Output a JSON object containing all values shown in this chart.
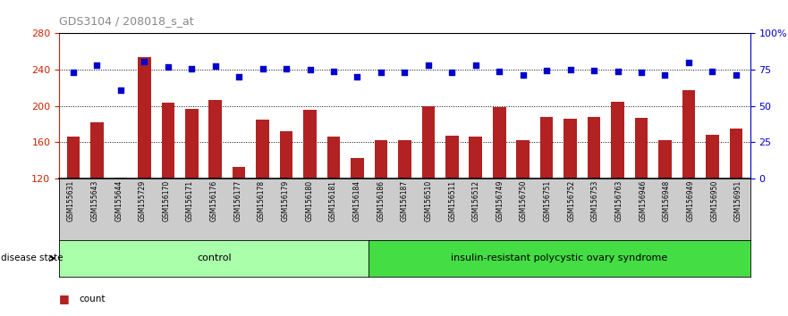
{
  "title": "GDS3104 / 208018_s_at",
  "samples": [
    "GSM155631",
    "GSM155643",
    "GSM155644",
    "GSM155729",
    "GSM156170",
    "GSM156171",
    "GSM156176",
    "GSM156177",
    "GSM156178",
    "GSM156179",
    "GSM156180",
    "GSM156181",
    "GSM156184",
    "GSM156186",
    "GSM156187",
    "GSM156510",
    "GSM156511",
    "GSM156512",
    "GSM156749",
    "GSM156750",
    "GSM156751",
    "GSM156752",
    "GSM156753",
    "GSM156763",
    "GSM156946",
    "GSM156948",
    "GSM156949",
    "GSM156950",
    "GSM156951"
  ],
  "bar_values": [
    166,
    182,
    121,
    254,
    204,
    197,
    206,
    133,
    185,
    172,
    196,
    166,
    143,
    162,
    162,
    200,
    167,
    166,
    199,
    162,
    188,
    186,
    188,
    205,
    187,
    162,
    217,
    168,
    175
  ],
  "percentile_values": [
    237,
    245,
    217,
    249,
    243,
    241,
    244,
    232,
    241,
    241,
    240,
    238,
    232,
    237,
    237,
    245,
    237,
    245,
    238,
    234,
    239,
    240,
    239,
    238,
    237,
    234,
    248,
    238,
    234
  ],
  "group_labels": [
    "control",
    "insulin-resistant polycystic ovary syndrome"
  ],
  "group_sizes": [
    13,
    16
  ],
  "ylim_left": [
    120,
    280
  ],
  "ylim_right": [
    0,
    100
  ],
  "yticks_left": [
    120,
    160,
    200,
    240,
    280
  ],
  "yticks_right": [
    0,
    25,
    50,
    75,
    100
  ],
  "bar_color": "#B22222",
  "dot_color": "#0000CC",
  "control_color": "#AAFFAA",
  "disease_color": "#44DD44",
  "ylabel_left_color": "#CC2200",
  "ylabel_right_color": "#0000CC",
  "title_color": "#888888",
  "xtick_bg_color": "#CCCCCC",
  "grid_dotted_color": "#000000"
}
